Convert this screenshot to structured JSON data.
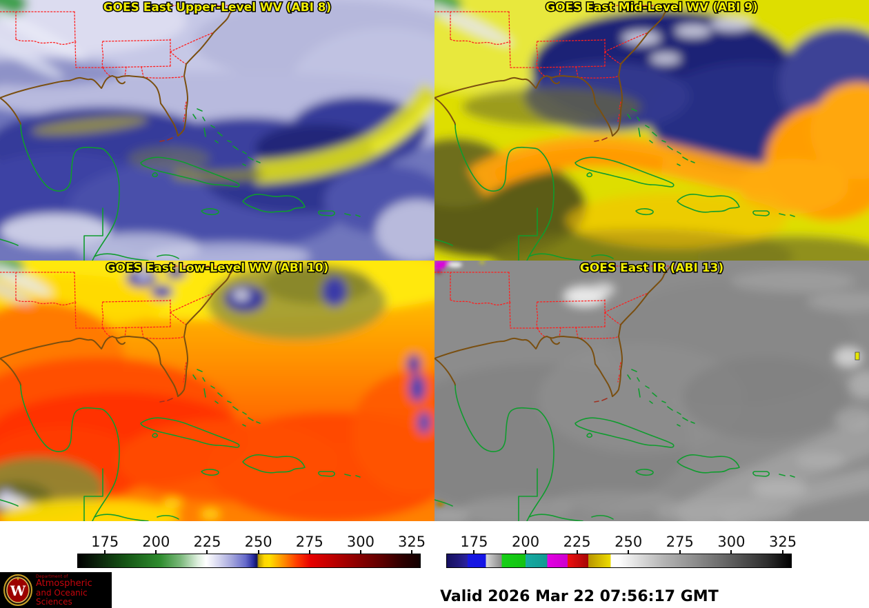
{
  "panels": [
    {
      "key": "abi8",
      "title": "GOES East Upper-Level WV (ABI 8)"
    },
    {
      "key": "abi9",
      "title": "GOES East Mid-Level WV (ABI 9)"
    },
    {
      "key": "abi10",
      "title": "GOES East Low-Level WV (ABI 10)"
    },
    {
      "key": "abi13",
      "title": "GOES East IR (ABI 13)"
    }
  ],
  "colorbars": {
    "wv": {
      "ticks": [
        "175",
        "200",
        "225",
        "250",
        "275",
        "300",
        "325"
      ]
    },
    "ir": {
      "ticks": [
        "175",
        "200",
        "225",
        "250",
        "275",
        "300",
        "325"
      ]
    }
  },
  "footer": {
    "valid": "Valid 2026 Mar 22 07:56:17 GMT"
  },
  "logo": {
    "dept": "Department of",
    "line1": "Atmospheric",
    "line2": "and Oceanic Sciences",
    "letter": "W"
  },
  "colors": {
    "title_text": "#f2ee00",
    "state_border": "#ff1e1e",
    "coastline": "#7a4f10",
    "island_outline": "#0f9c2e",
    "logo_text": "#c5050c"
  }
}
